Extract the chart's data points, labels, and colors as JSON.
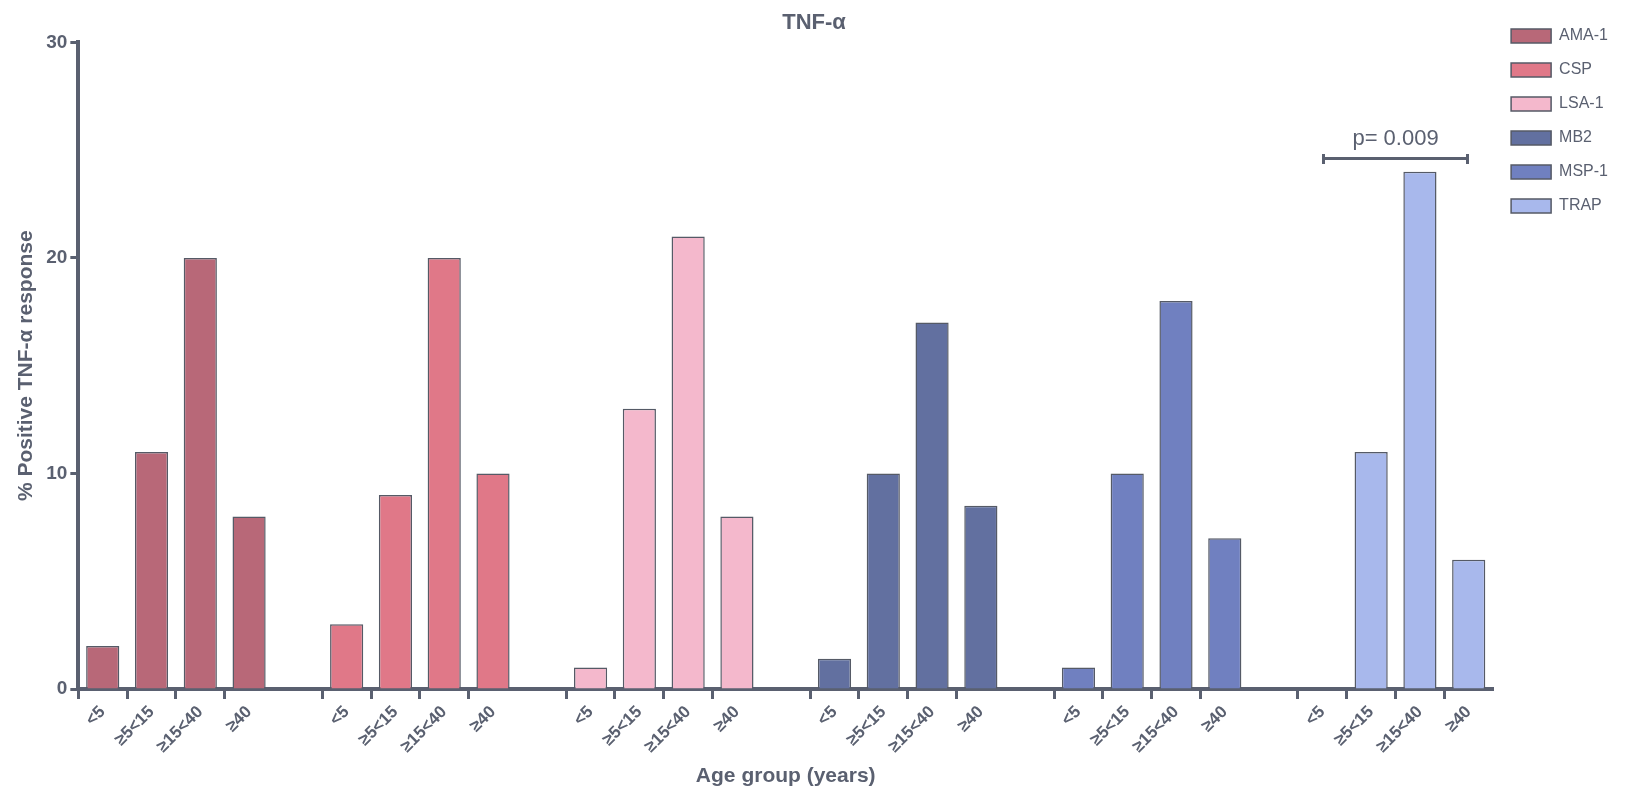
{
  "chart_data": {
    "type": "bar",
    "title": "TNF-α",
    "xlabel": "Age group (years)",
    "ylabel": "% Positive TNF-α response",
    "categories": [
      "<5",
      "≥5<15",
      "≥15<40",
      "≥40",
      null,
      "<5",
      "≥5<15",
      "≥15<40",
      "≥40",
      null,
      "<5",
      "≥5<15",
      "≥15<40",
      "≥40",
      null,
      "<5",
      "≥5<15",
      "≥15<40",
      "≥40",
      null,
      "<5",
      "≥5<15",
      "≥15<40",
      "≥40",
      null,
      "<5",
      "≥5<15",
      "≥15<40",
      "≥40"
    ],
    "series": [
      {
        "name": "AMA-1",
        "color": "#b86878",
        "values": [
          2,
          11,
          20,
          8,
          null,
          null,
          null,
          null,
          null,
          null,
          null,
          null,
          null,
          null,
          null,
          null,
          null,
          null,
          null,
          null,
          null,
          null,
          null,
          null,
          null,
          null,
          null,
          null,
          null
        ]
      },
      {
        "name": "CSP",
        "color": "#e07888",
        "values": [
          null,
          null,
          null,
          null,
          null,
          3,
          9,
          20,
          10,
          null,
          null,
          null,
          null,
          null,
          null,
          null,
          null,
          null,
          null,
          null,
          null,
          null,
          null,
          null,
          null,
          null,
          null,
          null,
          null
        ]
      },
      {
        "name": "LSA-1",
        "color": "#f4b8cc",
        "values": [
          null,
          null,
          null,
          null,
          null,
          null,
          null,
          null,
          null,
          null,
          1,
          13,
          21,
          8,
          null,
          null,
          null,
          null,
          null,
          null,
          null,
          null,
          null,
          null,
          null,
          null,
          null,
          null,
          null
        ]
      },
      {
        "name": "MB2",
        "color": "#6270a0",
        "values": [
          null,
          null,
          null,
          null,
          null,
          null,
          null,
          null,
          null,
          null,
          null,
          null,
          null,
          null,
          null,
          1.4,
          10,
          17,
          8.5,
          null,
          null,
          null,
          null,
          null,
          null,
          null,
          null,
          null,
          null
        ]
      },
      {
        "name": "MSP-1",
        "color": "#7080c0",
        "values": [
          null,
          null,
          null,
          null,
          null,
          null,
          null,
          null,
          null,
          null,
          null,
          null,
          null,
          null,
          null,
          null,
          null,
          null,
          null,
          null,
          1,
          10,
          18,
          7,
          null,
          null,
          null,
          null,
          null
        ]
      },
      {
        "name": "TRAP",
        "color": "#a8b8ec",
        "values": [
          null,
          null,
          null,
          null,
          null,
          null,
          null,
          null,
          null,
          null,
          null,
          null,
          null,
          null,
          null,
          null,
          null,
          null,
          null,
          null,
          null,
          null,
          null,
          null,
          null,
          0,
          11,
          24,
          6
        ]
      }
    ],
    "ylim": [
      0,
      30
    ],
    "yticks": [
      0,
      10,
      20,
      30
    ],
    "grid": false,
    "legend": "top right",
    "annotations": [
      "p= 0.009"
    ]
  }
}
